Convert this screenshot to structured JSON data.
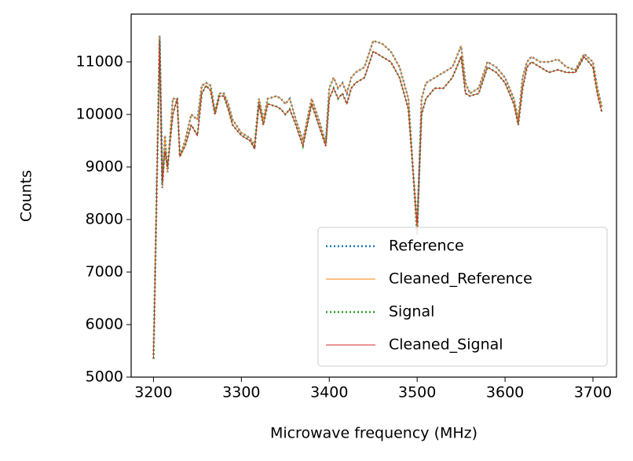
{
  "chart_data": {
    "type": "line",
    "x_label": "Microwave frequency (MHz)",
    "y_label": "Counts",
    "x": [
      3200,
      3207,
      3210,
      3213,
      3216,
      3222,
      3227,
      3230,
      3236,
      3243,
      3250,
      3255,
      3260,
      3265,
      3270,
      3275,
      3280,
      3285,
      3290,
      3300,
      3310,
      3315,
      3320,
      3325,
      3330,
      3340,
      3345,
      3350,
      3355,
      3362,
      3370,
      3380,
      3390,
      3396,
      3400,
      3405,
      3410,
      3415,
      3420,
      3425,
      3430,
      3440,
      3450,
      3460,
      3470,
      3480,
      3490,
      3500,
      3505,
      3510,
      3520,
      3530,
      3540,
      3550,
      3555,
      3560,
      3570,
      3580,
      3590,
      3600,
      3610,
      3615,
      3620,
      3625,
      3630,
      3640,
      3650,
      3660,
      3670,
      3680,
      3690,
      3700,
      3705,
      3710
    ],
    "series": [
      {
        "name": "Reference",
        "color": "#1f77b4",
        "linestyle": "dotted",
        "values": [
          5350,
          11500,
          8600,
          9600,
          8900,
          10300,
          10300,
          9200,
          9500,
          10000,
          9900,
          10550,
          10600,
          10550,
          10050,
          10400,
          10400,
          10200,
          9900,
          9650,
          9550,
          9400,
          10300,
          9900,
          10300,
          10350,
          10300,
          10200,
          10300,
          9900,
          9500,
          10300,
          9800,
          9450,
          10500,
          10700,
          10500,
          10600,
          10400,
          10700,
          10800,
          10900,
          11400,
          11350,
          11200,
          10900,
          10300,
          7700,
          10300,
          10600,
          10700,
          10800,
          10900,
          11300,
          10600,
          10400,
          10500,
          11000,
          10900,
          10700,
          10300,
          9900,
          10700,
          11000,
          11100,
          11000,
          11000,
          11050,
          10900,
          10850,
          11150,
          11000,
          10500,
          10150
        ]
      },
      {
        "name": "Cleaned_Reference",
        "color": "#ff7f0e",
        "linestyle": "solid",
        "values": [
          5350,
          11500,
          8600,
          9600,
          8900,
          10300,
          10300,
          9200,
          9500,
          10000,
          9900,
          10550,
          10600,
          10550,
          10050,
          10400,
          10400,
          10200,
          9900,
          9650,
          9550,
          9400,
          10300,
          9900,
          10300,
          10350,
          10300,
          10200,
          10300,
          9900,
          9500,
          10300,
          9800,
          9450,
          10500,
          10700,
          10500,
          10600,
          10400,
          10700,
          10800,
          10900,
          11400,
          11350,
          11200,
          10900,
          10300,
          7700,
          10300,
          10600,
          10700,
          10800,
          10900,
          11300,
          10600,
          10400,
          10500,
          11000,
          10900,
          10700,
          10300,
          9900,
          10700,
          11000,
          11100,
          11000,
          11000,
          11050,
          10900,
          10850,
          11150,
          11000,
          10500,
          10150
        ]
      },
      {
        "name": "Signal",
        "color": "#2ca02c",
        "linestyle": "dotted",
        "values": [
          5350,
          11400,
          8700,
          9300,
          9000,
          10000,
          10300,
          9200,
          9400,
          9800,
          9600,
          10400,
          10550,
          10450,
          10000,
          10350,
          10350,
          10100,
          9800,
          9600,
          9500,
          9350,
          10200,
          9800,
          10200,
          10150,
          10100,
          10000,
          10100,
          9800,
          9400,
          10200,
          9700,
          9400,
          10300,
          10500,
          10300,
          10400,
          10200,
          10500,
          10600,
          10700,
          11200,
          11100,
          11000,
          10700,
          10100,
          7900,
          10000,
          10300,
          10500,
          10500,
          10700,
          11100,
          10400,
          10350,
          10400,
          10900,
          10800,
          10600,
          10200,
          9800,
          10500,
          10900,
          11000,
          10900,
          10800,
          10850,
          10800,
          10800,
          11100,
          10900,
          10400,
          10050
        ]
      },
      {
        "name": "Cleaned_Signal",
        "color": "#d62728",
        "linestyle": "solid",
        "values": [
          5350,
          11400,
          8700,
          9300,
          9000,
          10000,
          10300,
          9200,
          9400,
          9800,
          9600,
          10400,
          10550,
          10450,
          10000,
          10350,
          10350,
          10100,
          9800,
          9600,
          9500,
          9350,
          10200,
          9800,
          10200,
          10150,
          10100,
          10000,
          10100,
          9800,
          9400,
          10200,
          9700,
          9400,
          10300,
          10500,
          10300,
          10400,
          10200,
          10500,
          10600,
          10700,
          11200,
          11100,
          11000,
          10700,
          10100,
          7900,
          10000,
          10300,
          10500,
          10500,
          10700,
          11100,
          10400,
          10350,
          10400,
          10900,
          10800,
          10600,
          10200,
          9800,
          10500,
          10900,
          11000,
          10900,
          10800,
          10850,
          10800,
          10800,
          11100,
          10900,
          10400,
          10050
        ]
      }
    ],
    "xlim": [
      3174.6,
      3726.8
    ],
    "ylim": [
      5000,
      11910
    ],
    "xticks": [
      3200,
      3300,
      3400,
      3500,
      3600,
      3700
    ],
    "yticks": [
      5000,
      6000,
      7000,
      8000,
      9000,
      10000,
      11000
    ],
    "legend": "lower right"
  }
}
